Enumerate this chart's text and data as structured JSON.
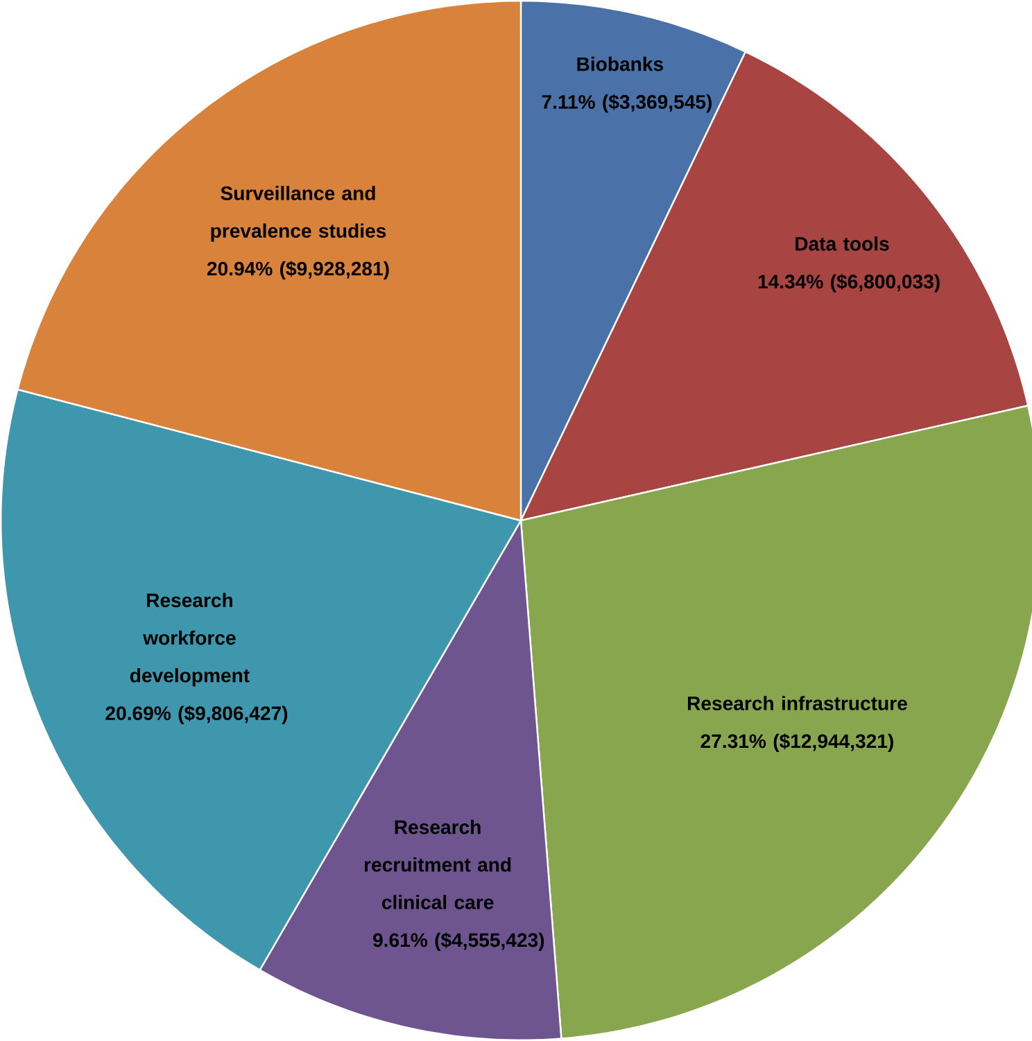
{
  "chart_data": {
    "type": "pie",
    "categories": [
      "Biobanks",
      "Data tools",
      "Research infrastructure",
      "Research recruitment and clinical care",
      "Research workforce development",
      "Surveillance and prevalence studies"
    ],
    "values": [
      3369545,
      6800033,
      12944321,
      4555423,
      9806427,
      9928281
    ],
    "colors": [
      "#4a72a8",
      "#a84442",
      "#88a64d",
      "#6e5590",
      "#3f97ad",
      "#d9823b"
    ],
    "value_labels": [
      "7.11% ($3,369,545)",
      "14.34% ($6,800,033)",
      "27.31% ($12,944,321)",
      "9.61% ($4,555,423)",
      "20.69% ($9,806,427)",
      "20.94% ($9,928,281)"
    ]
  }
}
